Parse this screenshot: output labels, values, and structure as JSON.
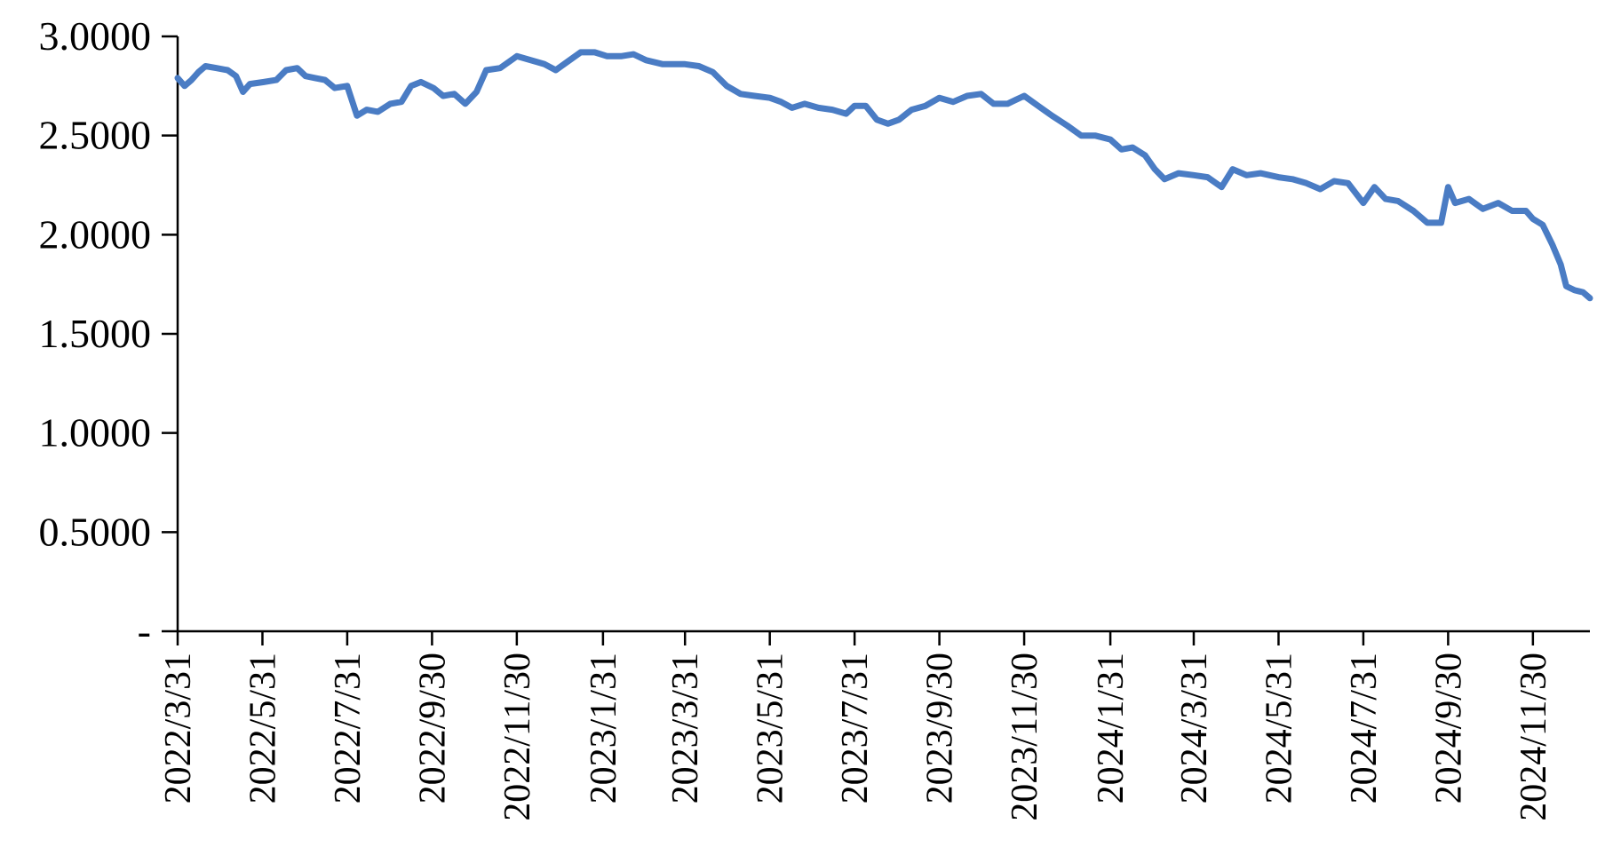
{
  "chart_data": {
    "type": "line",
    "title": "",
    "xlabel": "",
    "ylabel": "",
    "ylim": [
      0,
      3.0
    ],
    "y_ticks": [
      0,
      0.5,
      1.0,
      1.5,
      2.0,
      2.5,
      3.0
    ],
    "y_tick_labels": [
      "-",
      "0.5000",
      "1.0000",
      "1.5000",
      "2.0000",
      "2.5000",
      "3.0000"
    ],
    "x_ticks": [
      "2022/3/31",
      "2022/5/31",
      "2022/7/31",
      "2022/9/30",
      "2022/11/30",
      "2023/1/31",
      "2023/3/31",
      "2023/5/31",
      "2023/7/31",
      "2023/9/30",
      "2023/11/30",
      "2024/1/31",
      "2024/3/31",
      "2024/5/31",
      "2024/7/31",
      "2024/9/30",
      "2024/11/30"
    ],
    "x_range": [
      "2022/3/31",
      "2025/1/10"
    ],
    "grid": false,
    "legend": "none",
    "line_color": "#4a7cc4",
    "series": [
      {
        "points": [
          [
            "2022/3/31",
            2.79
          ],
          [
            "2022/4/5",
            2.75
          ],
          [
            "2022/4/10",
            2.78
          ],
          [
            "2022/4/15",
            2.82
          ],
          [
            "2022/4/20",
            2.85
          ],
          [
            "2022/4/28",
            2.84
          ],
          [
            "2022/5/6",
            2.83
          ],
          [
            "2022/5/12",
            2.8
          ],
          [
            "2022/5/17",
            2.72
          ],
          [
            "2022/5/22",
            2.76
          ],
          [
            "2022/6/1",
            2.77
          ],
          [
            "2022/6/10",
            2.78
          ],
          [
            "2022/6/17",
            2.83
          ],
          [
            "2022/6/25",
            2.84
          ],
          [
            "2022/7/1",
            2.8
          ],
          [
            "2022/7/8",
            2.79
          ],
          [
            "2022/7/15",
            2.78
          ],
          [
            "2022/7/22",
            2.74
          ],
          [
            "2022/7/31",
            2.75
          ],
          [
            "2022/8/7",
            2.6
          ],
          [
            "2022/8/14",
            2.63
          ],
          [
            "2022/8/22",
            2.62
          ],
          [
            "2022/8/31",
            2.66
          ],
          [
            "2022/9/8",
            2.67
          ],
          [
            "2022/9/15",
            2.75
          ],
          [
            "2022/9/22",
            2.77
          ],
          [
            "2022/10/1",
            2.74
          ],
          [
            "2022/10/8",
            2.7
          ],
          [
            "2022/10/16",
            2.71
          ],
          [
            "2022/10/24",
            2.66
          ],
          [
            "2022/11/1",
            2.72
          ],
          [
            "2022/11/8",
            2.83
          ],
          [
            "2022/11/18",
            2.84
          ],
          [
            "2022/11/30",
            2.9
          ],
          [
            "2022/12/10",
            2.88
          ],
          [
            "2022/12/20",
            2.86
          ],
          [
            "2022/12/28",
            2.83
          ],
          [
            "2023/1/5",
            2.87
          ],
          [
            "2023/1/15",
            2.92
          ],
          [
            "2023/1/25",
            2.92
          ],
          [
            "2023/2/3",
            2.9
          ],
          [
            "2023/2/13",
            2.9
          ],
          [
            "2023/2/22",
            2.91
          ],
          [
            "2023/3/3",
            2.88
          ],
          [
            "2023/3/15",
            2.86
          ],
          [
            "2023/3/31",
            2.86
          ],
          [
            "2023/4/10",
            2.85
          ],
          [
            "2023/4/20",
            2.82
          ],
          [
            "2023/4/30",
            2.75
          ],
          [
            "2023/5/10",
            2.71
          ],
          [
            "2023/5/20",
            2.7
          ],
          [
            "2023/5/31",
            2.69
          ],
          [
            "2023/6/8",
            2.67
          ],
          [
            "2023/6/16",
            2.64
          ],
          [
            "2023/6/25",
            2.66
          ],
          [
            "2023/7/5",
            2.64
          ],
          [
            "2023/7/15",
            2.63
          ],
          [
            "2023/7/25",
            2.61
          ],
          [
            "2023/7/31",
            2.65
          ],
          [
            "2023/8/8",
            2.65
          ],
          [
            "2023/8/16",
            2.58
          ],
          [
            "2023/8/24",
            2.56
          ],
          [
            "2023/9/1",
            2.58
          ],
          [
            "2023/9/10",
            2.63
          ],
          [
            "2023/9/20",
            2.65
          ],
          [
            "2023/9/30",
            2.69
          ],
          [
            "2023/10/10",
            2.67
          ],
          [
            "2023/10/20",
            2.7
          ],
          [
            "2023/10/30",
            2.71
          ],
          [
            "2023/11/8",
            2.66
          ],
          [
            "2023/11/18",
            2.66
          ],
          [
            "2023/11/30",
            2.7
          ],
          [
            "2023/12/10",
            2.65
          ],
          [
            "2023/12/20",
            2.6
          ],
          [
            "2023/12/31",
            2.55
          ],
          [
            "2024/1/10",
            2.5
          ],
          [
            "2024/1/20",
            2.5
          ],
          [
            "2024/1/31",
            2.48
          ],
          [
            "2024/2/8",
            2.43
          ],
          [
            "2024/2/16",
            2.44
          ],
          [
            "2024/2/25",
            2.4
          ],
          [
            "2024/3/3",
            2.33
          ],
          [
            "2024/3/10",
            2.28
          ],
          [
            "2024/3/20",
            2.31
          ],
          [
            "2024/3/31",
            2.3
          ],
          [
            "2024/4/10",
            2.29
          ],
          [
            "2024/4/20",
            2.24
          ],
          [
            "2024/4/28",
            2.33
          ],
          [
            "2024/5/8",
            2.3
          ],
          [
            "2024/5/18",
            2.31
          ],
          [
            "2024/5/31",
            2.29
          ],
          [
            "2024/6/10",
            2.28
          ],
          [
            "2024/6/20",
            2.26
          ],
          [
            "2024/6/30",
            2.23
          ],
          [
            "2024/7/10",
            2.27
          ],
          [
            "2024/7/20",
            2.26
          ],
          [
            "2024/7/31",
            2.16
          ],
          [
            "2024/8/8",
            2.24
          ],
          [
            "2024/8/16",
            2.18
          ],
          [
            "2024/8/25",
            2.17
          ],
          [
            "2024/9/5",
            2.12
          ],
          [
            "2024/9/15",
            2.06
          ],
          [
            "2024/9/25",
            2.06
          ],
          [
            "2024/9/30",
            2.24
          ],
          [
            "2024/10/5",
            2.16
          ],
          [
            "2024/10/15",
            2.18
          ],
          [
            "2024/10/25",
            2.13
          ],
          [
            "2024/11/5",
            2.16
          ],
          [
            "2024/11/15",
            2.12
          ],
          [
            "2024/11/25",
            2.12
          ],
          [
            "2024/11/30",
            2.08
          ],
          [
            "2024/12/7",
            2.05
          ],
          [
            "2024/12/14",
            1.95
          ],
          [
            "2024/12/20",
            1.85
          ],
          [
            "2024/12/24",
            1.74
          ],
          [
            "2024/12/30",
            1.72
          ],
          [
            "2025/1/5",
            1.71
          ],
          [
            "2025/1/10",
            1.68
          ]
        ]
      }
    ]
  }
}
